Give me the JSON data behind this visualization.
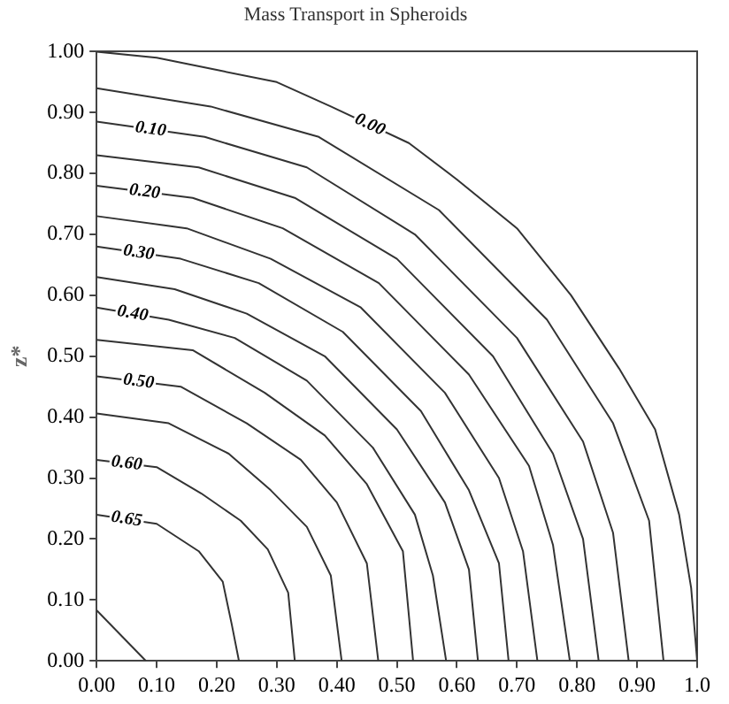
{
  "chart_data": {
    "type": "line",
    "title": "Mass Transport in Spheroids",
    "ylabel": "z*",
    "xlim": [
      0,
      1
    ],
    "ylim": [
      0,
      1
    ],
    "xticks": [
      {
        "value": 0,
        "label": "0.00"
      },
      {
        "value": 0.1,
        "label": "0.10"
      },
      {
        "value": 0.2,
        "label": "0.20"
      },
      {
        "value": 0.3,
        "label": "0.30"
      },
      {
        "value": 0.4,
        "label": "0.40"
      },
      {
        "value": 0.5,
        "label": "0.50"
      },
      {
        "value": 0.6,
        "label": "0.60"
      },
      {
        "value": 0.7,
        "label": "0.70"
      },
      {
        "value": 0.8,
        "label": "0.80"
      },
      {
        "value": 0.9,
        "label": "0.90"
      },
      {
        "value": 1,
        "label": "1.0"
      }
    ],
    "yticks": [
      {
        "value": 0,
        "label": "0.00"
      },
      {
        "value": 0.1,
        "label": "0.10"
      },
      {
        "value": 0.2,
        "label": "0.20"
      },
      {
        "value": 0.3,
        "label": "0.30"
      },
      {
        "value": 0.4,
        "label": "0.40"
      },
      {
        "value": 0.5,
        "label": "0.50"
      },
      {
        "value": 0.6,
        "label": "0.60"
      },
      {
        "value": 0.7,
        "label": "0.70"
      },
      {
        "value": 0.8,
        "label": "0.80"
      },
      {
        "value": 0.9,
        "label": "0.90"
      },
      {
        "value": 1,
        "label": "1.00"
      }
    ],
    "grid": false,
    "legend": false,
    "marker": "none",
    "line_style": "solid",
    "series": [
      {
        "name": "0.00",
        "color": "#333333",
        "x": [
          0,
          0.1,
          0.2,
          0.3,
          0.39,
          0.52,
          0.6,
          0.7,
          0.79,
          0.87,
          0.93,
          0.97,
          0.99,
          1.0
        ],
        "values": [
          1.0,
          0.99,
          0.97,
          0.95,
          0.91,
          0.85,
          0.79,
          0.71,
          0.6,
          0.48,
          0.38,
          0.24,
          0.12,
          0
        ]
      },
      {
        "color": "#333333",
        "x": [
          0,
          0.19,
          0.37,
          0.57,
          0.75,
          0.86,
          0.92,
          0.944
        ],
        "values": [
          0.94,
          0.91,
          0.86,
          0.74,
          0.56,
          0.39,
          0.23,
          0
        ]
      },
      {
        "name": "0.10",
        "color": "#333333",
        "x": [
          0,
          0.18,
          0.35,
          0.53,
          0.7,
          0.81,
          0.86,
          0.886
        ],
        "values": [
          0.885,
          0.86,
          0.81,
          0.7,
          0.53,
          0.36,
          0.21,
          0
        ]
      },
      {
        "color": "#333333",
        "x": [
          0,
          0.17,
          0.33,
          0.5,
          0.66,
          0.76,
          0.81,
          0.836
        ],
        "values": [
          0.83,
          0.81,
          0.76,
          0.66,
          0.5,
          0.34,
          0.2,
          0
        ]
      },
      {
        "name": "0.20",
        "color": "#333333",
        "x": [
          0,
          0.16,
          0.31,
          0.47,
          0.62,
          0.72,
          0.76,
          0.788
        ],
        "values": [
          0.78,
          0.76,
          0.71,
          0.62,
          0.47,
          0.32,
          0.19,
          0
        ]
      },
      {
        "color": "#333333",
        "x": [
          0,
          0.15,
          0.29,
          0.44,
          0.58,
          0.67,
          0.71,
          0.734
        ],
        "values": [
          0.73,
          0.71,
          0.66,
          0.58,
          0.44,
          0.3,
          0.18,
          0
        ]
      },
      {
        "name": "0.30",
        "color": "#333333",
        "x": [
          0,
          0.14,
          0.27,
          0.41,
          0.54,
          0.62,
          0.67,
          0.686
        ],
        "values": [
          0.68,
          0.66,
          0.62,
          0.54,
          0.41,
          0.28,
          0.16,
          0
        ]
      },
      {
        "color": "#333333",
        "x": [
          0,
          0.13,
          0.25,
          0.38,
          0.5,
          0.58,
          0.62,
          0.635
        ],
        "values": [
          0.63,
          0.61,
          0.57,
          0.5,
          0.38,
          0.26,
          0.15,
          0
        ]
      },
      {
        "name": "0.40",
        "color": "#333333",
        "x": [
          0,
          0.12,
          0.23,
          0.35,
          0.46,
          0.53,
          0.56,
          0.582
        ],
        "values": [
          0.58,
          0.56,
          0.53,
          0.46,
          0.35,
          0.24,
          0.14,
          0
        ]
      },
      {
        "color": "#333333",
        "x": [
          0,
          0.16,
          0.28,
          0.38,
          0.45,
          0.51,
          0.527
        ],
        "values": [
          0.527,
          0.51,
          0.44,
          0.37,
          0.29,
          0.18,
          0
        ]
      },
      {
        "name": "0.50",
        "color": "#333333",
        "x": [
          0,
          0.14,
          0.25,
          0.34,
          0.4,
          0.45,
          0.469
        ],
        "values": [
          0.467,
          0.45,
          0.39,
          0.33,
          0.26,
          0.16,
          0
        ]
      },
      {
        "color": "#333333",
        "x": [
          0,
          0.12,
          0.22,
          0.29,
          0.35,
          0.39,
          0.408
        ],
        "values": [
          0.406,
          0.39,
          0.34,
          0.28,
          0.22,
          0.14,
          0
        ]
      },
      {
        "name": "0.60",
        "color": "#333333",
        "x": [
          0,
          0.1,
          0.174,
          0.24,
          0.285,
          0.319,
          0.33
        ],
        "values": [
          0.33,
          0.318,
          0.275,
          0.23,
          0.183,
          0.112,
          0
        ]
      },
      {
        "name": "0.65",
        "color": "#333333",
        "x": [
          0,
          0.1,
          0.17,
          0.21,
          0.225,
          0.237
        ],
        "values": [
          0.24,
          0.225,
          0.18,
          0.13,
          0.06,
          0
        ]
      },
      {
        "color": "#333333",
        "x": [
          0,
          0.082
        ],
        "values": [
          0.083,
          0
        ]
      }
    ]
  }
}
